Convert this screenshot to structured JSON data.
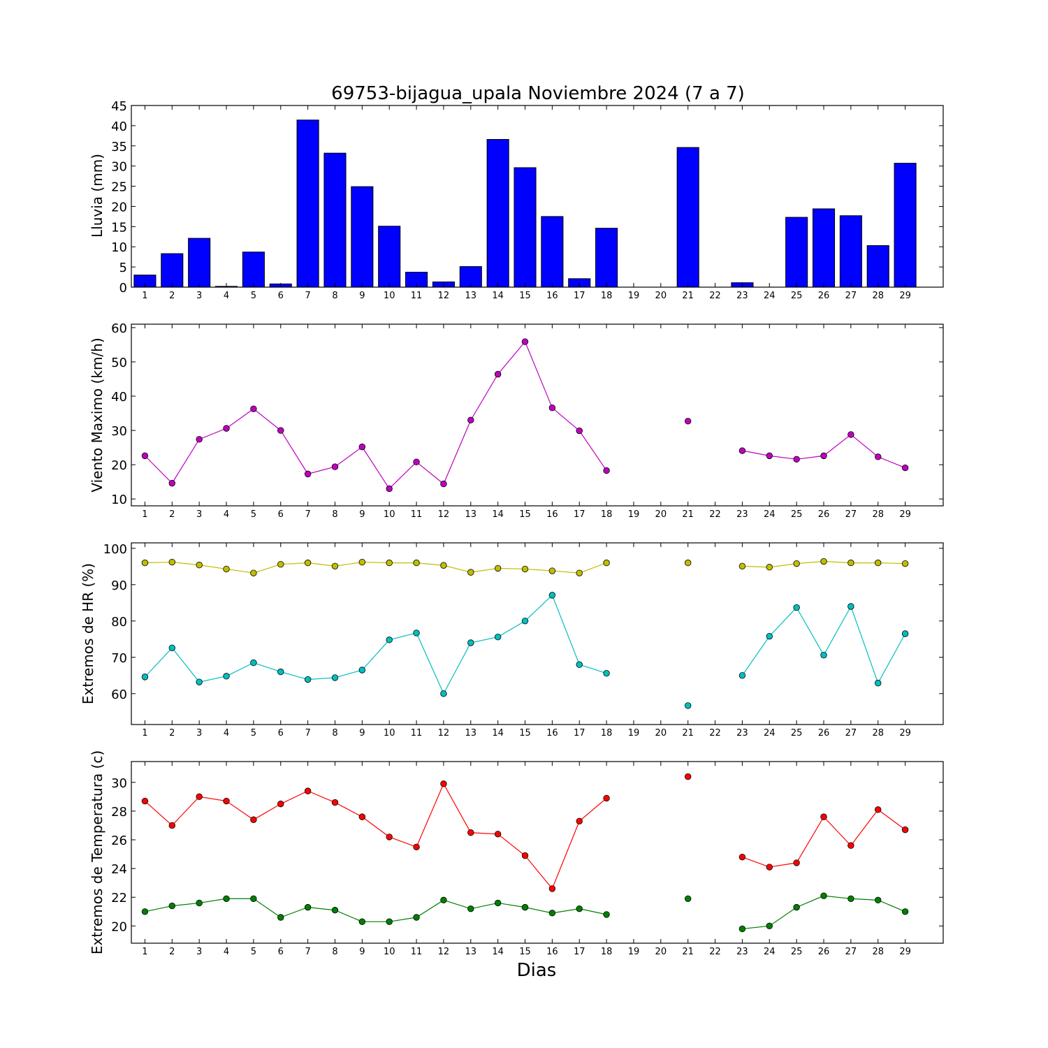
{
  "chart_data": [
    {
      "type": "bar",
      "title": "69753-bijagua_upala Noviembre 2024  (7 a 7)",
      "ylabel": "Lluvia (mm)",
      "xlabel": "",
      "categories": [
        "1",
        "2",
        "3",
        "4",
        "5",
        "6",
        "7",
        "8",
        "9",
        "10",
        "11",
        "12",
        "13",
        "14",
        "15",
        "16",
        "17",
        "18",
        "19",
        "20",
        "21",
        "22",
        "23",
        "24",
        "25",
        "26",
        "27",
        "28",
        "29"
      ],
      "values": [
        3.0,
        8.3,
        12.1,
        0.2,
        8.7,
        0.8,
        41.4,
        33.2,
        24.9,
        15.1,
        3.7,
        1.3,
        5.1,
        36.6,
        29.6,
        17.5,
        2.1,
        14.6,
        0,
        0,
        34.6,
        0,
        1.1,
        0,
        17.3,
        19.4,
        17.7,
        10.3,
        30.7
      ],
      "ylim": [
        0,
        45
      ],
      "yticks": [
        0,
        5,
        10,
        15,
        20,
        25,
        30,
        35,
        40,
        45
      ],
      "color": "#0000ff",
      "grid": false
    },
    {
      "type": "line",
      "title": "",
      "ylabel": "Viento Maximo (km/h)",
      "xlabel": "",
      "categories": [
        "1",
        "2",
        "3",
        "4",
        "5",
        "6",
        "7",
        "8",
        "9",
        "10",
        "11",
        "12",
        "13",
        "14",
        "15",
        "16",
        "17",
        "18",
        "19",
        "20",
        "21",
        "22",
        "23",
        "24",
        "25",
        "26",
        "27",
        "28",
        "29"
      ],
      "series": [
        {
          "color": "#bf00bf",
          "values": [
            22.6,
            14.6,
            27.4,
            30.6,
            36.3,
            30.0,
            17.3,
            19.4,
            25.2,
            13.0,
            20.8,
            14.4,
            33.0,
            46.4,
            55.9,
            36.6,
            29.9,
            18.3,
            null,
            null,
            32.7,
            null,
            24.1,
            22.6,
            21.6,
            22.6,
            28.8,
            22.3,
            19.1
          ]
        }
      ],
      "ylim": [
        8,
        61
      ],
      "yticks": [
        10,
        20,
        30,
        40,
        50,
        60
      ],
      "grid": false
    },
    {
      "type": "line",
      "title": "",
      "ylabel": "Extremos de HR (%)",
      "xlabel": "",
      "categories": [
        "1",
        "2",
        "3",
        "4",
        "5",
        "6",
        "7",
        "8",
        "9",
        "10",
        "11",
        "12",
        "13",
        "14",
        "15",
        "16",
        "17",
        "18",
        "19",
        "20",
        "21",
        "22",
        "23",
        "24",
        "25",
        "26",
        "27",
        "28",
        "29"
      ],
      "series": [
        {
          "color": "#bfbf00",
          "values": [
            96.0,
            96.2,
            95.4,
            94.3,
            93.2,
            95.6,
            96.0,
            95.1,
            96.2,
            96.0,
            96.0,
            95.3,
            93.4,
            94.5,
            94.3,
            93.8,
            93.2,
            96.0,
            null,
            null,
            96.0,
            null,
            95.1,
            94.8,
            95.8,
            96.4,
            96.0,
            96.0,
            95.8
          ]
        },
        {
          "color": "#00bfbf",
          "values": [
            64.6,
            72.6,
            63.2,
            64.8,
            68.5,
            66.0,
            63.9,
            64.4,
            66.5,
            74.8,
            76.7,
            60.0,
            74.0,
            75.6,
            80.0,
            87.1,
            68.0,
            65.6,
            null,
            null,
            56.7,
            null,
            65.0,
            75.8,
            83.7,
            70.6,
            84.0,
            62.9,
            76.5
          ]
        }
      ],
      "ylim": [
        51.5,
        101.5
      ],
      "yticks": [
        60,
        70,
        80,
        90,
        100
      ],
      "grid": false
    },
    {
      "type": "line",
      "title": "",
      "ylabel": "Extremos de Temperatura (c)",
      "xlabel": "Dias",
      "categories": [
        "1",
        "2",
        "3",
        "4",
        "5",
        "6",
        "7",
        "8",
        "9",
        "10",
        "11",
        "12",
        "13",
        "14",
        "15",
        "16",
        "17",
        "18",
        "19",
        "20",
        "21",
        "22",
        "23",
        "24",
        "25",
        "26",
        "27",
        "28",
        "29"
      ],
      "series": [
        {
          "color": "#ff0000",
          "values": [
            28.7,
            27.0,
            29.0,
            28.7,
            27.4,
            28.5,
            29.4,
            28.6,
            27.6,
            26.2,
            25.5,
            29.9,
            26.5,
            26.4,
            24.9,
            22.6,
            27.3,
            28.9,
            null,
            null,
            30.4,
            null,
            24.8,
            24.1,
            24.4,
            27.6,
            25.6,
            28.1,
            26.7
          ]
        },
        {
          "color": "#007f00",
          "values": [
            21.0,
            21.4,
            21.6,
            21.9,
            21.9,
            20.6,
            21.3,
            21.1,
            20.3,
            20.3,
            20.6,
            21.8,
            21.2,
            21.6,
            21.3,
            20.9,
            21.2,
            20.8,
            null,
            null,
            21.9,
            null,
            19.8,
            20.0,
            21.3,
            22.1,
            21.9,
            21.8,
            21.0
          ]
        }
      ],
      "ylim": [
        18.8,
        31.45
      ],
      "yticks": [
        20,
        22,
        24,
        26,
        28,
        30
      ],
      "grid": false
    }
  ]
}
